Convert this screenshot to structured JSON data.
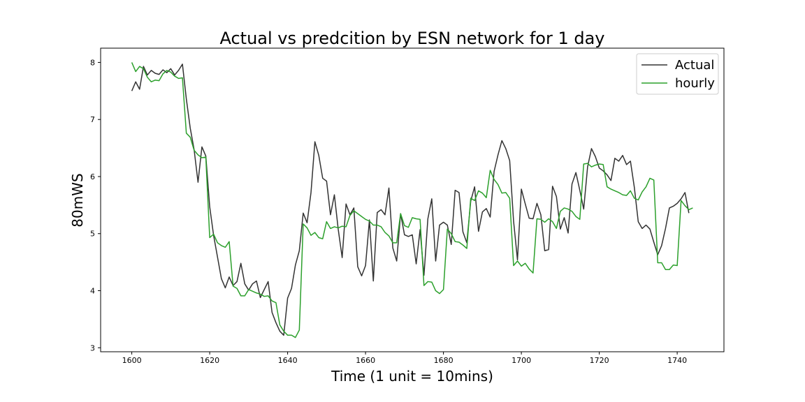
{
  "chart_data": {
    "type": "line",
    "title": "Actual vs predcition by ESN network for 1 day",
    "xlabel": "Time (1 unit = 10mins)",
    "ylabel": "80mWS",
    "xlim": [
      1592,
      1752
    ],
    "ylim": [
      2.93,
      8.25
    ],
    "xticks": [
      1600,
      1620,
      1640,
      1660,
      1680,
      1700,
      1720,
      1740
    ],
    "yticks": [
      3,
      4,
      5,
      6,
      7,
      8
    ],
    "grid": false,
    "legend": {
      "placement": "top-right",
      "entries": [
        "Actual",
        "hourly"
      ]
    },
    "x_start": 1600,
    "series": [
      {
        "name": "Actual",
        "color": "#333333",
        "values": [
          7.5,
          7.66,
          7.53,
          7.93,
          7.78,
          7.86,
          7.81,
          7.79,
          7.87,
          7.82,
          7.89,
          7.78,
          7.86,
          7.97,
          7.36,
          6.85,
          6.47,
          5.9,
          6.52,
          6.36,
          5.47,
          4.97,
          4.59,
          4.21,
          4.05,
          4.24,
          4.09,
          4.16,
          4.48,
          4.12,
          4.01,
          4.12,
          4.17,
          3.88,
          4.02,
          4.16,
          3.62,
          3.44,
          3.29,
          3.22,
          3.87,
          4.04,
          4.45,
          4.7,
          5.36,
          5.19,
          5.72,
          6.61,
          6.37,
          5.97,
          5.92,
          5.33,
          5.68,
          5.07,
          4.58,
          5.52,
          5.33,
          5.45,
          4.42,
          4.26,
          4.44,
          5.24,
          4.17,
          5.37,
          5.42,
          5.33,
          5.8,
          4.75,
          4.52,
          5.35,
          4.98,
          4.95,
          4.98,
          4.47,
          5.07,
          4.27,
          5.26,
          5.61,
          4.52,
          5.15,
          5.2,
          5.15,
          4.81,
          5.76,
          5.72,
          5.03,
          4.84,
          5.57,
          5.82,
          5.04,
          5.38,
          5.44,
          5.29,
          6.09,
          6.38,
          6.63,
          6.49,
          6.28,
          5.22,
          4.54,
          5.78,
          5.52,
          5.27,
          5.26,
          5.53,
          5.33,
          4.7,
          4.72,
          5.83,
          5.65,
          5.08,
          5.28,
          5.01,
          5.87,
          6.07,
          5.76,
          5.43,
          6.17,
          6.49,
          6.35,
          6.15,
          6.1,
          6.03,
          5.93,
          6.32,
          6.27,
          6.37,
          6.21,
          6.27,
          5.81,
          5.21,
          5.09,
          5.15,
          5.08,
          4.85,
          4.63,
          4.79,
          5.09,
          5.45,
          5.48,
          5.53,
          5.61,
          5.72,
          5.36
        ]
      },
      {
        "name": "hourly",
        "color": "#2ca02c",
        "values": [
          8.0,
          7.84,
          7.93,
          7.89,
          7.74,
          7.66,
          7.69,
          7.68,
          7.8,
          7.86,
          7.83,
          7.76,
          7.72,
          7.73,
          6.76,
          6.69,
          6.46,
          6.38,
          6.33,
          6.34,
          4.93,
          4.99,
          4.84,
          4.79,
          4.76,
          4.86,
          4.08,
          4.04,
          3.91,
          3.91,
          4.02,
          3.99,
          3.96,
          3.94,
          3.9,
          3.91,
          3.82,
          3.79,
          3.4,
          3.29,
          3.22,
          3.22,
          3.18,
          3.31,
          5.17,
          5.1,
          4.97,
          5.02,
          4.93,
          4.91,
          5.21,
          5.09,
          5.12,
          5.1,
          5.13,
          5.12,
          5.32,
          5.4,
          5.35,
          5.3,
          5.25,
          5.22,
          5.15,
          5.15,
          5.12,
          5.02,
          4.96,
          4.84,
          4.84,
          5.35,
          5.14,
          5.11,
          5.28,
          5.26,
          5.25,
          4.09,
          4.16,
          4.15,
          4.0,
          3.95,
          4.02,
          5.08,
          5.0,
          4.86,
          4.85,
          4.8,
          4.74,
          5.62,
          5.58,
          5.75,
          5.71,
          5.63,
          6.11,
          5.95,
          5.86,
          5.71,
          5.72,
          5.62,
          4.44,
          4.52,
          4.43,
          4.48,
          4.38,
          4.31,
          5.26,
          5.25,
          5.2,
          5.26,
          5.21,
          5.09,
          5.39,
          5.45,
          5.43,
          5.39,
          5.3,
          5.25,
          6.22,
          6.23,
          6.17,
          6.2,
          6.22,
          6.21,
          5.82,
          5.78,
          5.75,
          5.72,
          5.68,
          5.67,
          5.75,
          5.62,
          5.59,
          5.73,
          5.82,
          5.97,
          5.94,
          4.49,
          4.49,
          4.37,
          4.37,
          4.45,
          4.44,
          5.58,
          5.49,
          5.42,
          5.45
        ]
      }
    ]
  }
}
